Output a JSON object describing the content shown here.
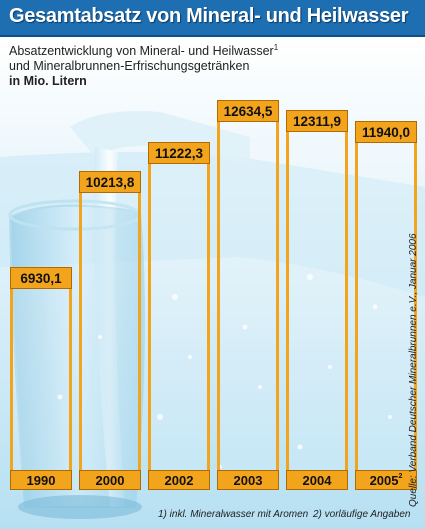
{
  "header": {
    "title": "Gesamtabsatz von Mineral- und Heilwasser"
  },
  "subtitle": {
    "line1": "Absatzentwicklung von Mineral- und Heilwasser",
    "line1_sup": "1",
    "line2": "und Mineralbrunnen-Erfrischungsgetränken",
    "unit": "in Mio. Litern"
  },
  "source": "Quelle: Verband Deutscher Mineralbrunnen e.V., Januar 2006",
  "footnotes": {
    "fn1": "1) inkl. Mineralwasser mit Aromen",
    "fn2": "2) vorläufige Angaben"
  },
  "colors": {
    "header": "#1e6fb2",
    "bar_accent": "#f3a41d",
    "water": "#aeddf2"
  },
  "chart_data": {
    "type": "bar",
    "title": "Gesamtabsatz von Mineral- und Heilwasser",
    "ylabel": "in Mio. Litern",
    "xlabel": "",
    "ylim": [
      0,
      13500
    ],
    "grid": false,
    "categories": [
      "1990",
      "2000",
      "2002",
      "2003",
      "2004",
      "2005"
    ],
    "category_sup": [
      "",
      "",
      "",
      "",
      "",
      "2"
    ],
    "values": [
      6930.1,
      10213.8,
      11222.3,
      12634.5,
      12311.9,
      11940.0
    ],
    "value_labels": [
      "6930,1",
      "10213,8",
      "11222,3",
      "12634,5",
      "12311,9",
      "11940,0"
    ]
  }
}
